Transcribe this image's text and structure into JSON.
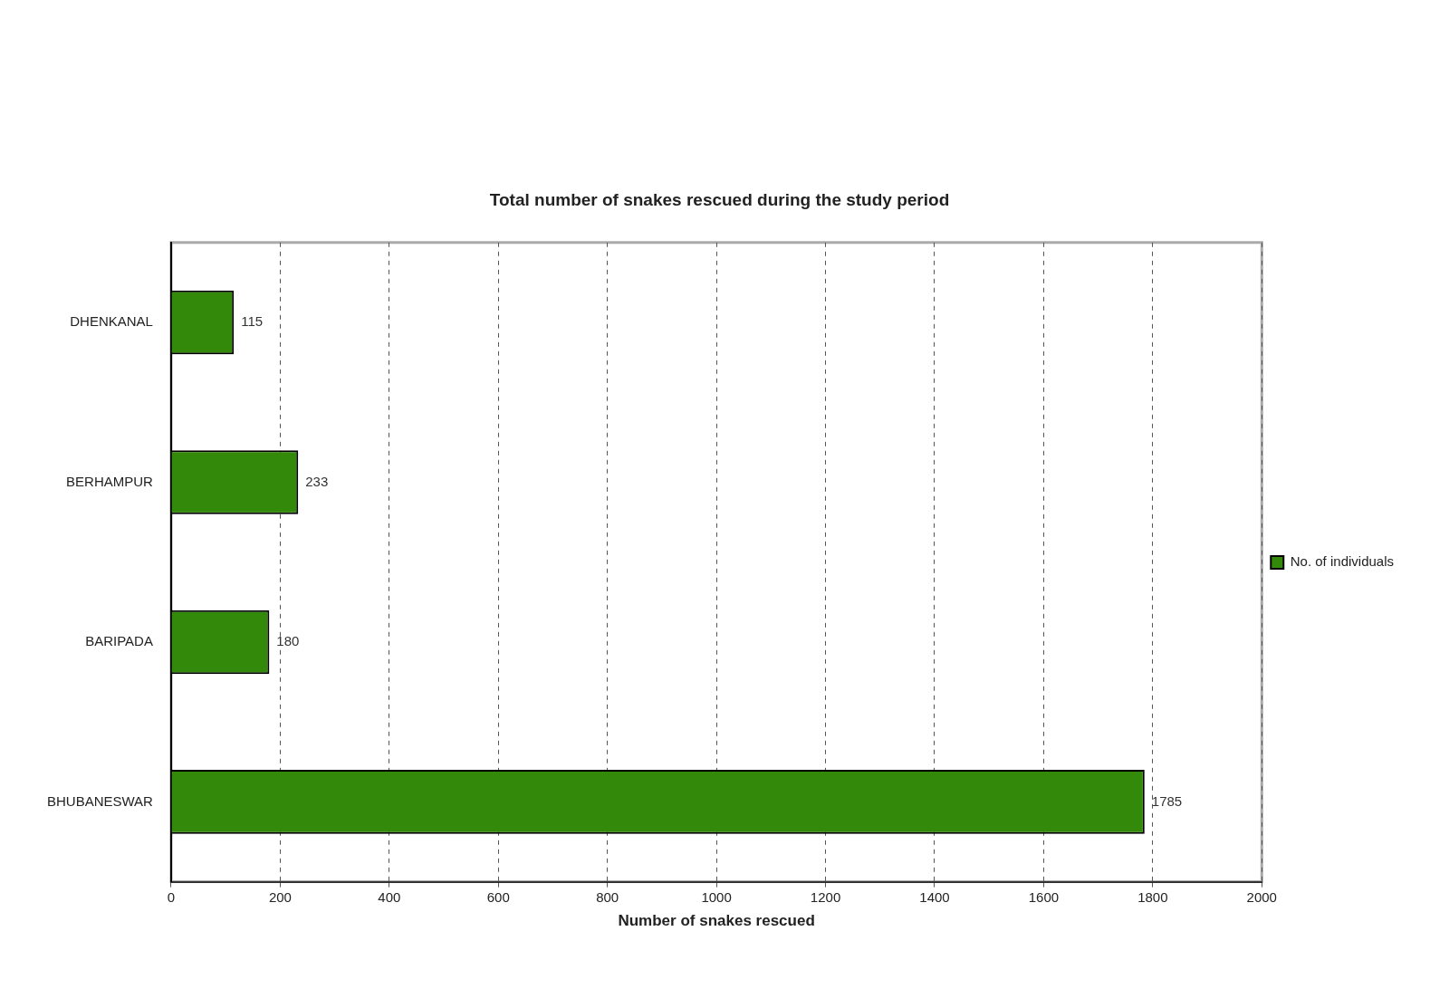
{
  "chart_data": {
    "type": "bar",
    "orientation": "horizontal",
    "title": "Total number of snakes rescued during the study period",
    "xlabel": "Number of snakes rescued",
    "categories": [
      "DHENKANAL",
      "BERHAMPUR",
      "BARIPADA",
      "BHUBANESWAR"
    ],
    "series": [
      {
        "name": "No. of individuals",
        "color": "#338a0a",
        "values": [
          115,
          233,
          180,
          1785
        ]
      }
    ],
    "xlim": [
      0,
      2000
    ],
    "xticks": [
      0,
      200,
      400,
      600,
      800,
      1000,
      1200,
      1400,
      1600,
      1800,
      2000
    ],
    "grid": "x",
    "legend": "right",
    "data_labels": true
  }
}
